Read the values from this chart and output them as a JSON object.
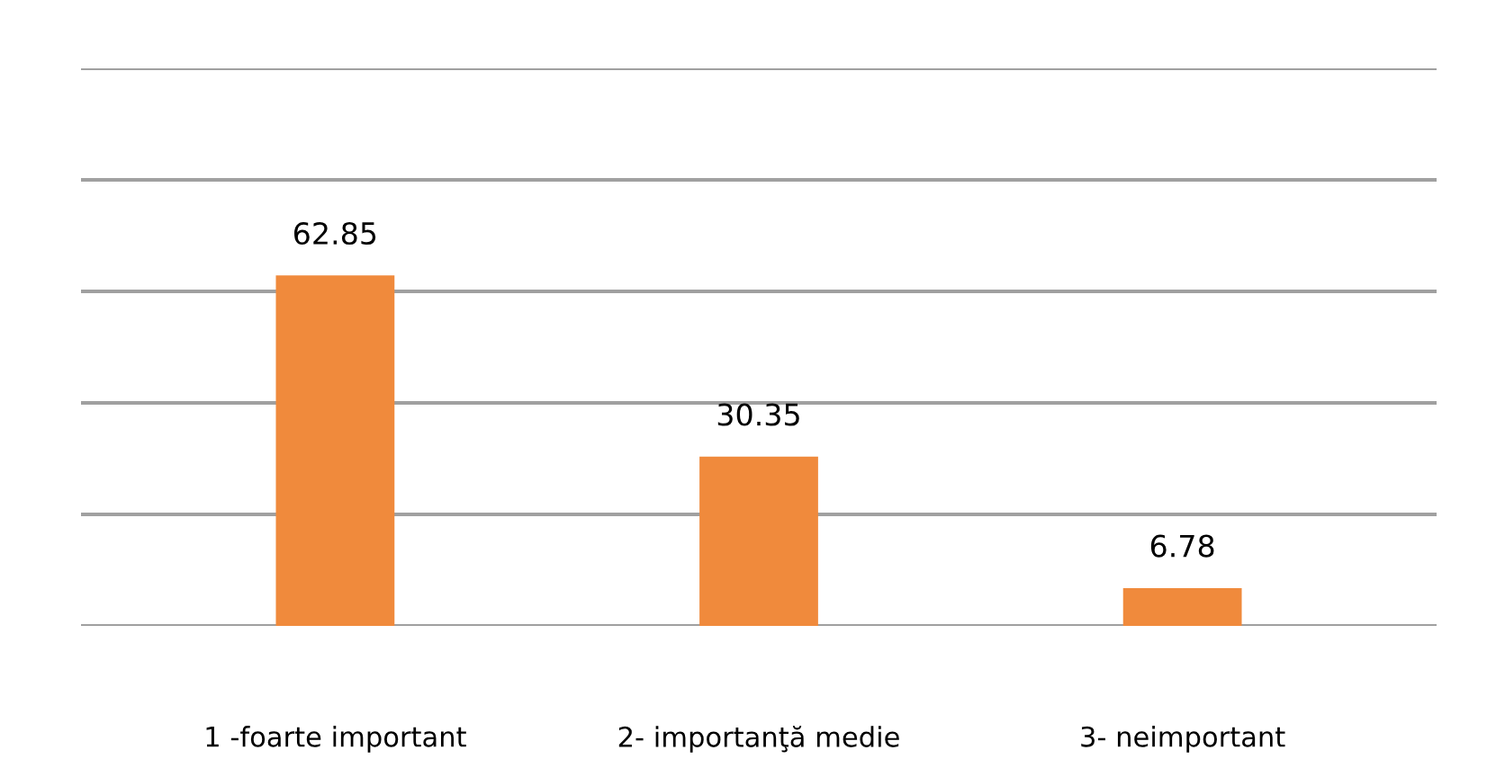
{
  "chart_data": {
    "type": "bar",
    "categories": [
      "1 -foarte important",
      "2- importanţă medie",
      "3- neimportant"
    ],
    "values": [
      62.85,
      30.35,
      6.78
    ],
    "color": "#f08a3c",
    "data_labels": true,
    "ylim": [
      0,
      100
    ],
    "yticks": [
      {
        "value": 0,
        "label": null
      },
      {
        "value": 20,
        "label": null
      },
      {
        "value": 40,
        "label": null
      },
      {
        "value": 60,
        "label": null
      },
      {
        "value": 80,
        "label": null
      },
      {
        "value": 100,
        "label": null
      }
    ],
    "tick_labels": "x",
    "grid": "y"
  }
}
